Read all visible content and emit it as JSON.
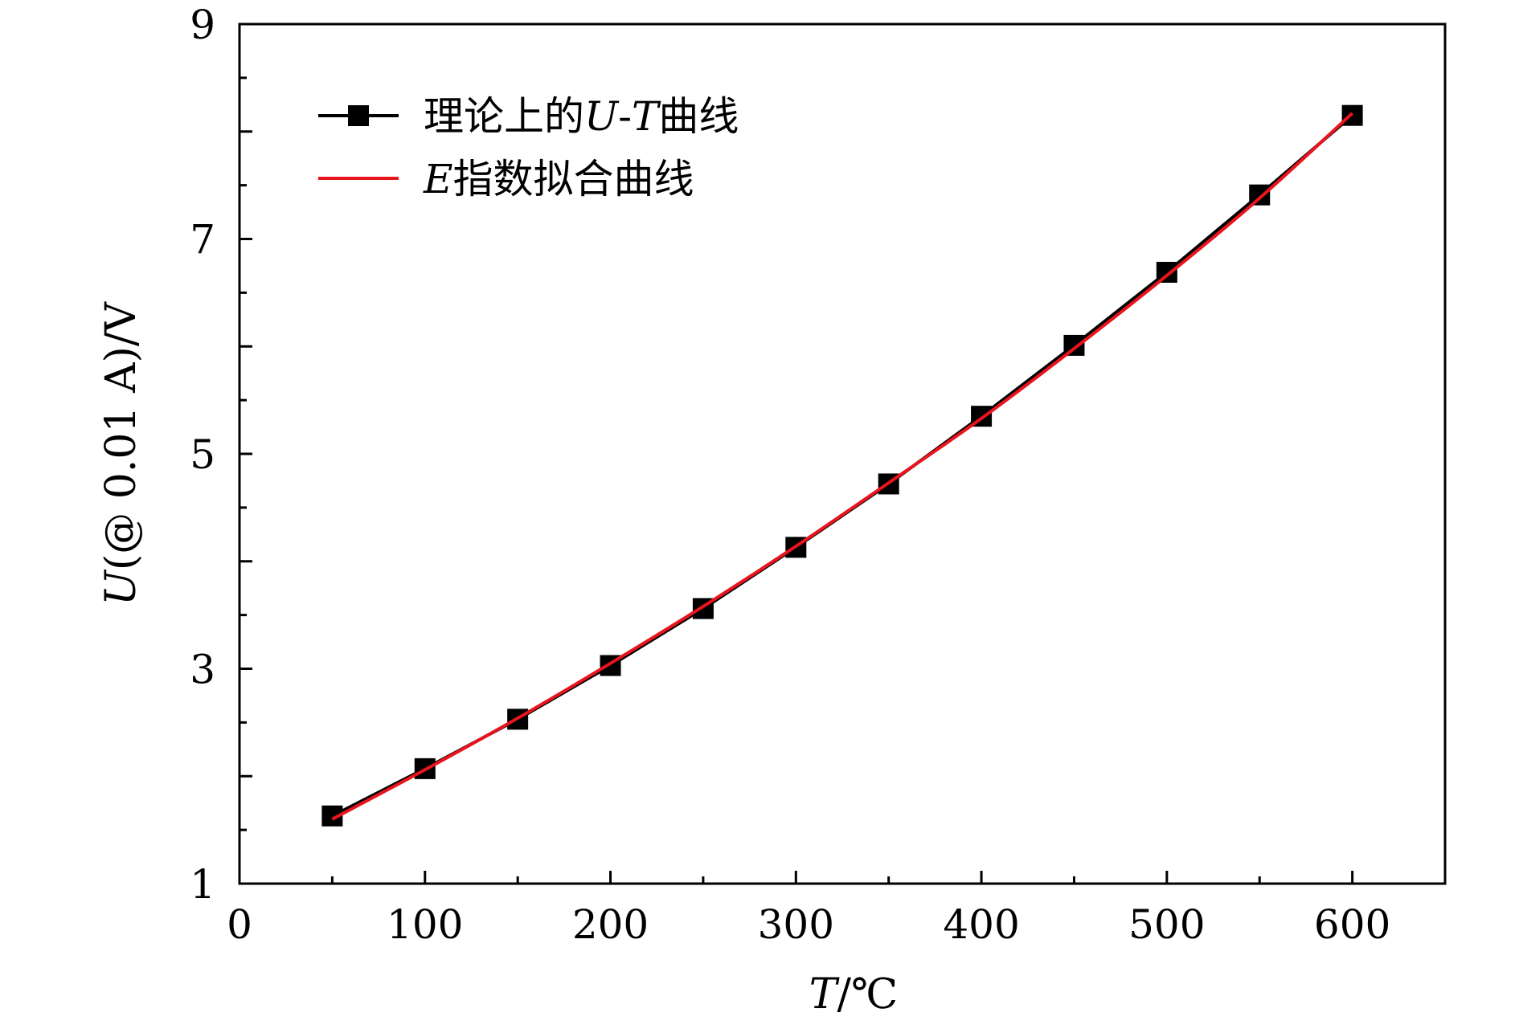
{
  "chart_data": {
    "type": "line",
    "title": "",
    "xlabel": {
      "symbol": "T",
      "unit": "/℃"
    },
    "ylabel": {
      "symbol": "U",
      "rest": "(@ 0.01 A)/V"
    },
    "xlim": [
      0,
      650
    ],
    "ylim": [
      1,
      9
    ],
    "x_ticks": [
      0,
      100,
      200,
      300,
      400,
      500,
      600
    ],
    "y_ticks_labeled": [
      1,
      3,
      5,
      7,
      9
    ],
    "y_ticks_minor": [
      2,
      4,
      6,
      8
    ],
    "x_minor_ticks": [
      50,
      150,
      250,
      350,
      450,
      550
    ],
    "grid": false,
    "legend_position": "top-left",
    "series": [
      {
        "name": "理论上的U-T曲线",
        "legend_parts": [
          "理论上的",
          "U",
          "-",
          "T",
          "曲线"
        ],
        "style": "line-markers",
        "marker": "square",
        "color": "#000000",
        "x": [
          50,
          100,
          150,
          200,
          250,
          300,
          350,
          400,
          450,
          500,
          550,
          600
        ],
        "y": [
          1.63,
          2.07,
          2.53,
          3.03,
          3.56,
          4.13,
          4.72,
          5.35,
          6.01,
          6.69,
          7.41,
          8.15
        ]
      },
      {
        "name": "E指数拟合曲线",
        "legend_parts": [
          "E",
          "指数拟合曲线"
        ],
        "style": "line",
        "color": "#e8141e",
        "x": [
          50,
          100,
          150,
          200,
          250,
          300,
          350,
          400,
          450,
          500,
          550,
          600
        ],
        "y": [
          1.6,
          2.06,
          2.54,
          3.05,
          3.58,
          4.14,
          4.73,
          5.33,
          5.98,
          6.66,
          7.38,
          8.17
        ]
      }
    ]
  }
}
